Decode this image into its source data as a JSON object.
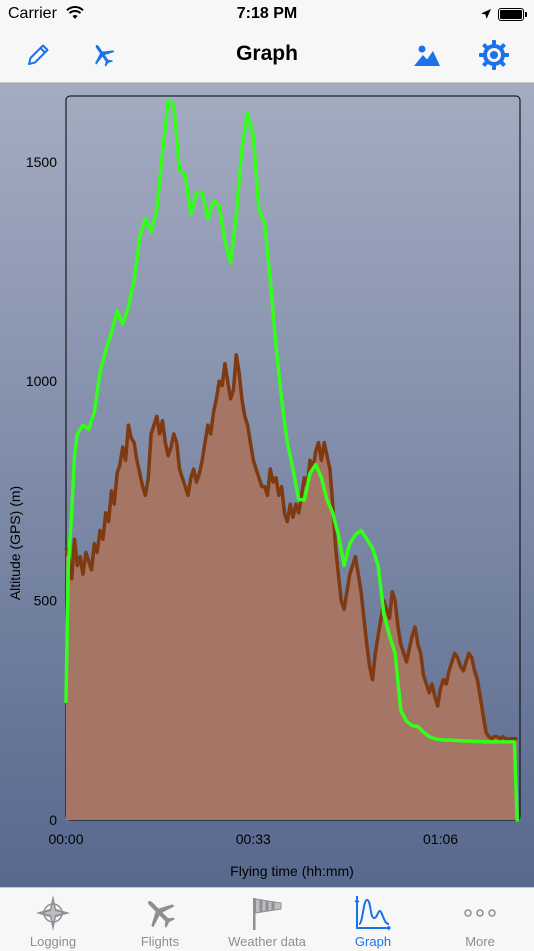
{
  "status_bar": {
    "carrier": "Carrier",
    "time": "7:18 PM"
  },
  "nav": {
    "title": "Graph",
    "left_icons": [
      "pencil-icon",
      "airplane-icon"
    ],
    "right_icons": [
      "image-icon",
      "gear-icon"
    ],
    "accent": "#1a73e8"
  },
  "chart_data": {
    "type": "area",
    "xlabel": "Flying time (hh:mm)",
    "ylabel": "Altitude (GPS) (m)",
    "xlim": [
      0,
      80
    ],
    "ylim": [
      0,
      1650
    ],
    "x_ticks": [
      {
        "value": 0,
        "label": "00:00"
      },
      {
        "value": 33,
        "label": "00:33"
      },
      {
        "value": 66,
        "label": "01:06"
      }
    ],
    "y_ticks": [
      {
        "value": 0,
        "label": "0"
      },
      {
        "value": 500,
        "label": "500"
      },
      {
        "value": 1000,
        "label": "1000"
      },
      {
        "value": 1500,
        "label": "1500"
      }
    ],
    "series": [
      {
        "role": "altitude-line",
        "color": "#33ff1a",
        "x": [
          0,
          0.4,
          1,
          1.5,
          2,
          3,
          4,
          5,
          6,
          7,
          8,
          9,
          10,
          11,
          12,
          13,
          14,
          15,
          16,
          17,
          18,
          19,
          20,
          21,
          22,
          23,
          24,
          25,
          26,
          27,
          28,
          29,
          30,
          31,
          32,
          33,
          34,
          35,
          36,
          37,
          38,
          39,
          40,
          41,
          42,
          43,
          44,
          45,
          46,
          47,
          48,
          49,
          50,
          51,
          52,
          53,
          54,
          55,
          56,
          57,
          58,
          59,
          60,
          61,
          62,
          63,
          64,
          65,
          66,
          67,
          68,
          69,
          70,
          71,
          72,
          73,
          74,
          75,
          76,
          77,
          78,
          79,
          79.5
        ],
        "values": [
          270,
          580,
          700,
          830,
          880,
          900,
          890,
          930,
          1020,
          1070,
          1110,
          1160,
          1130,
          1170,
          1230,
          1330,
          1370,
          1340,
          1390,
          1520,
          1640,
          1630,
          1480,
          1470,
          1380,
          1430,
          1430,
          1370,
          1410,
          1400,
          1320,
          1270,
          1380,
          1530,
          1610,
          1560,
          1390,
          1360,
          1230,
          1080,
          960,
          860,
          800,
          730,
          730,
          790,
          810,
          780,
          730,
          700,
          650,
          580,
          630,
          650,
          660,
          640,
          620,
          580,
          470,
          420,
          380,
          250,
          225,
          215,
          213,
          200,
          190,
          185,
          183,
          182,
          182,
          181,
          180,
          180,
          179,
          179,
          178,
          178,
          178,
          178,
          178,
          178,
          0
        ]
      },
      {
        "role": "ground-area",
        "fill": "#a57566",
        "line_color": "#7f3a12",
        "x": [
          0,
          0.5,
          1,
          1.5,
          2,
          2.5,
          3,
          3.5,
          4,
          4.5,
          5,
          5.5,
          6,
          6.5,
          7,
          7.5,
          8,
          8.5,
          9,
          9.5,
          10,
          10.5,
          11,
          11.5,
          12,
          12.5,
          13,
          13.5,
          14,
          14.5,
          15,
          15.5,
          16,
          16.5,
          17,
          17.5,
          18,
          18.5,
          19,
          19.5,
          20,
          20.5,
          21,
          21.5,
          22,
          22.5,
          23,
          23.5,
          24,
          24.5,
          25,
          25.5,
          26,
          26.5,
          27,
          27.5,
          28,
          28.5,
          29,
          29.5,
          30,
          30.5,
          31,
          31.5,
          32,
          32.5,
          33,
          33.5,
          34,
          34.5,
          35,
          35.5,
          36,
          36.5,
          37,
          37.5,
          38,
          38.5,
          39,
          39.5,
          40,
          40.5,
          41,
          41.5,
          42,
          42.5,
          43,
          43.5,
          44,
          44.5,
          45,
          45.5,
          46,
          46.5,
          47,
          47.5,
          48,
          48.5,
          49,
          49.5,
          50,
          50.5,
          51,
          51.5,
          52,
          52.5,
          53,
          53.5,
          54,
          54.5,
          55,
          55.5,
          56,
          56.5,
          57,
          57.5,
          58,
          58.5,
          59,
          59.5,
          60,
          60.5,
          61,
          61.5,
          62,
          62.5,
          63,
          63.5,
          64,
          64.5,
          65,
          65.5,
          66,
          66.5,
          67,
          67.5,
          68,
          68.5,
          69,
          69.5,
          70,
          70.5,
          71,
          71.5,
          72,
          72.5,
          73,
          73.5,
          74,
          74.5,
          75,
          75.5,
          76,
          76.5,
          77,
          77.5,
          78,
          78.5,
          79,
          79.5
        ],
        "values": [
          620,
          600,
          550,
          640,
          580,
          600,
          560,
          610,
          590,
          570,
          630,
          610,
          660,
          640,
          700,
          680,
          750,
          720,
          790,
          810,
          850,
          820,
          900,
          870,
          860,
          820,
          790,
          760,
          740,
          780,
          880,
          900,
          920,
          880,
          910,
          860,
          830,
          850,
          880,
          860,
          800,
          780,
          760,
          740,
          780,
          800,
          770,
          790,
          820,
          860,
          900,
          880,
          930,
          960,
          1000,
          990,
          1040,
          1000,
          960,
          980,
          1060,
          1020,
          960,
          920,
          900,
          860,
          820,
          800,
          780,
          760,
          760,
          740,
          800,
          770,
          780,
          740,
          760,
          700,
          680,
          720,
          690,
          720,
          700,
          740,
          780,
          760,
          820,
          800,
          840,
          860,
          820,
          860,
          830,
          800,
          720,
          620,
          560,
          500,
          480,
          520,
          560,
          580,
          600,
          560,
          520,
          460,
          400,
          350,
          320,
          380,
          420,
          460,
          500,
          480,
          460,
          520,
          500,
          440,
          400,
          380,
          360,
          390,
          420,
          440,
          400,
          380,
          330,
          310,
          290,
          310,
          280,
          260,
          300,
          320,
          310,
          340,
          360,
          380,
          370,
          350,
          340,
          360,
          380,
          370,
          340,
          320,
          280,
          240,
          200,
          190,
          185,
          190,
          190,
          185,
          190,
          185,
          185,
          185,
          185,
          185
        ]
      }
    ]
  },
  "tabs": [
    {
      "label": "Logging",
      "icon": "compass-star-icon",
      "active": false
    },
    {
      "label": "Flights",
      "icon": "airplane-icon",
      "active": false
    },
    {
      "label": "Weather data",
      "icon": "windsock-icon",
      "active": false
    },
    {
      "label": "Graph",
      "icon": "graph-icon",
      "active": true
    },
    {
      "label": "More",
      "icon": "more-dots-icon",
      "active": false
    }
  ]
}
